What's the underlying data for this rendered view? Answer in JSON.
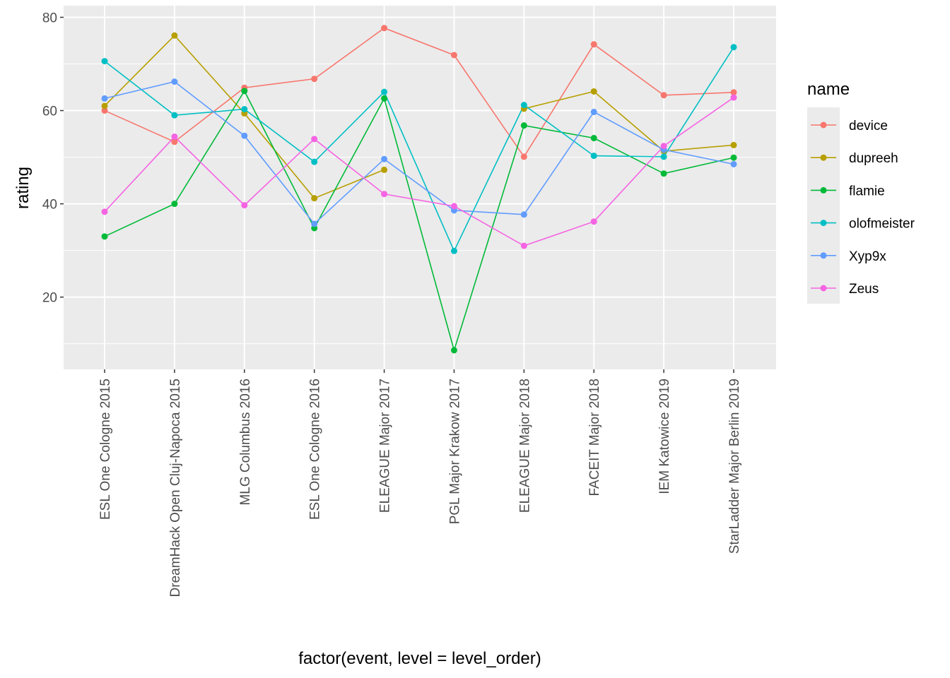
{
  "chart_data": {
    "type": "line",
    "xlabel": "factor(event, level = level_order)",
    "ylabel": "rating",
    "ylim": [
      4.5,
      82.5
    ],
    "yticks": [
      20,
      40,
      60,
      80
    ],
    "grid": true,
    "legend_title": "name",
    "legend_position": "right",
    "categories": [
      "ESL One Cologne 2015",
      "DreamHack Open Cluj-Napoca 2015",
      "MLG Columbus 2016",
      "ESL One Cologne 2016",
      "ELEAGUE Major 2017",
      "PGL Major Krakow 2017",
      "ELEAGUE Major 2018",
      "FACEIT Major 2018",
      "IEM Katowice 2019",
      "StarLadder Major Berlin 2019"
    ],
    "series": [
      {
        "name": "device",
        "color": "#F8766D",
        "values": [
          60.0,
          53.3,
          64.9,
          66.8,
          77.7,
          71.9,
          50.1,
          74.2,
          63.3,
          63.9
        ]
      },
      {
        "name": "dupreeh",
        "color": "#B79F00",
        "values": [
          61.0,
          76.1,
          59.4,
          41.2,
          47.3,
          null,
          60.4,
          64.1,
          51.3,
          52.6
        ]
      },
      {
        "name": "flamie",
        "color": "#00BA38",
        "values": [
          33.0,
          40.0,
          64.2,
          34.8,
          62.6,
          8.6,
          56.8,
          54.1,
          46.5,
          49.9
        ]
      },
      {
        "name": "olofmeister",
        "color": "#00BFC4",
        "values": [
          70.6,
          59.0,
          60.3,
          49.0,
          64.0,
          29.9,
          61.2,
          50.3,
          50.1,
          73.6
        ]
      },
      {
        "name": "Xyp9x",
        "color": "#619CFF",
        "values": [
          62.6,
          66.2,
          54.6,
          35.7,
          49.6,
          38.6,
          37.7,
          59.7,
          51.6,
          48.5
        ]
      },
      {
        "name": "Zeus",
        "color": "#F564E3",
        "values": [
          38.3,
          54.4,
          39.7,
          53.9,
          42.1,
          39.5,
          31.0,
          36.2,
          52.4,
          62.8
        ]
      }
    ]
  }
}
